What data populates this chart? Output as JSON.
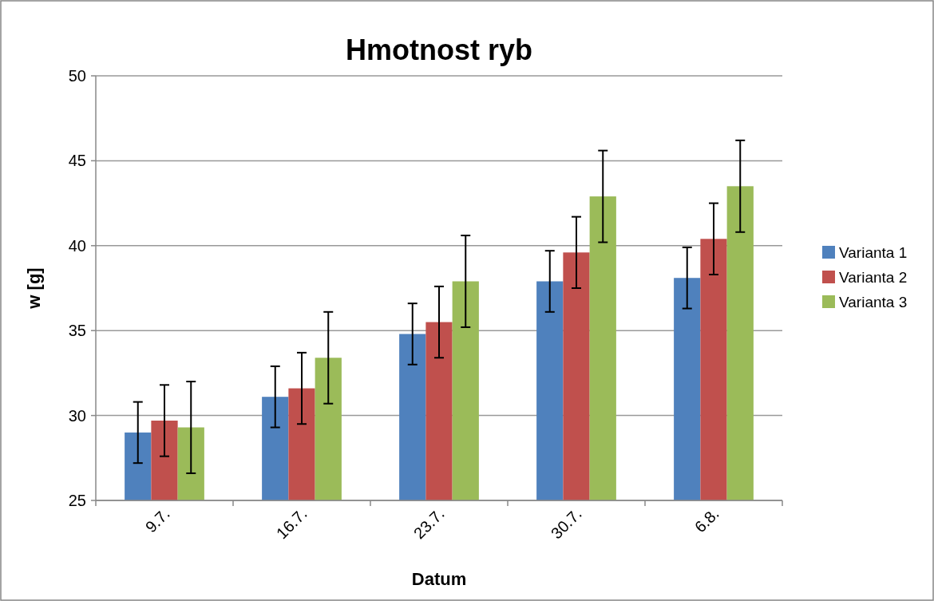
{
  "chart_data": {
    "type": "bar",
    "title": "Hmotnost ryb",
    "xlabel": "Datum",
    "ylabel": "w [g]",
    "categories": [
      "9.7.",
      "16.7.",
      "23.7.",
      "30.7.",
      "6.8."
    ],
    "series": [
      {
        "name": "Varianta 1",
        "color": "#4f81bd",
        "values": [
          29.0,
          31.1,
          34.8,
          37.9,
          38.1
        ],
        "errors": [
          1.8,
          1.8,
          1.8,
          1.8,
          1.8
        ]
      },
      {
        "name": "Varianta 2",
        "color": "#c0504d",
        "values": [
          29.7,
          31.6,
          35.5,
          39.6,
          40.4
        ],
        "errors": [
          2.1,
          2.1,
          2.1,
          2.1,
          2.1
        ]
      },
      {
        "name": "Varianta 3",
        "color": "#9bbb59",
        "values": [
          29.3,
          33.4,
          37.9,
          42.9,
          43.5
        ],
        "errors": [
          2.7,
          2.7,
          2.7,
          2.7,
          2.7
        ]
      }
    ],
    "ylim": [
      25,
      50
    ],
    "yticks": [
      25,
      30,
      35,
      40,
      45,
      50
    ],
    "grid": "y",
    "legend": "right"
  }
}
